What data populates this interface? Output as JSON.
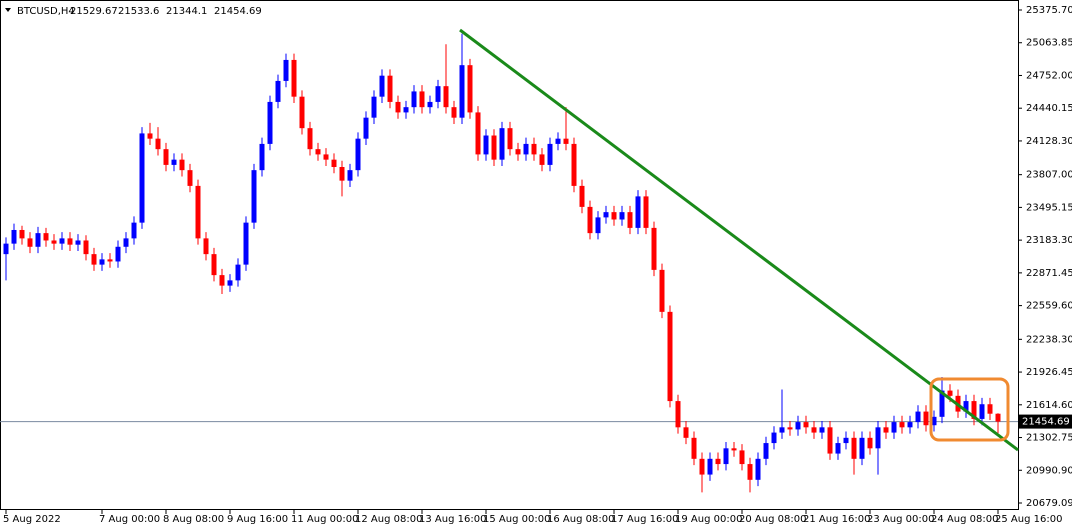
{
  "chart_data": {
    "type": "candlestick",
    "header": {
      "symbol": "BTCUSD,H4",
      "open": 21529.67,
      "high": 21533.6,
      "low": 21344.1,
      "close": 21454.69
    },
    "up_color": "#0000ff",
    "down_color": "#ff0000",
    "current_price": 21454.69,
    "ylim": [
      20679.09,
      25375.7
    ],
    "yticks": [
      {
        "value": 25375.7,
        "label": "25375.70"
      },
      25063.85,
      {
        "value": 24752.0,
        "label": "24752.00"
      },
      24440.15,
      {
        "value": 24128.3,
        "label": "24128.30"
      },
      {
        "value": 23807.0,
        "label": "23807.00"
      },
      23495.15,
      {
        "value": 23183.3,
        "label": "23183.30"
      },
      22871.45,
      {
        "value": 22559.6,
        "label": "22559.60"
      },
      {
        "value": 22238.3,
        "label": "22238.30"
      },
      21926.45,
      {
        "value": 21614.6,
        "label": "21614.60"
      },
      21302.75,
      {
        "value": 20990.9,
        "label": "20990.90"
      },
      20679.09
    ],
    "xticks": [
      {
        "value": 0,
        "label": "5 Aug 2022"
      },
      {
        "value": 12,
        "label": "7 Aug 00:00"
      },
      {
        "value": 20,
        "label": "8 Aug 08:00"
      },
      {
        "value": 28,
        "label": "9 Aug 16:00"
      },
      {
        "value": 36,
        "label": "11 Aug 00:00"
      },
      {
        "value": 44,
        "label": "12 Aug 08:00"
      },
      {
        "value": 52,
        "label": "13 Aug 16:00"
      },
      {
        "value": 60,
        "label": "15 Aug 00:00"
      },
      {
        "value": 68,
        "label": "16 Aug 08:00"
      },
      {
        "value": 76,
        "label": "17 Aug 16:00"
      },
      {
        "value": 84,
        "label": "19 Aug 00:00"
      },
      {
        "value": 92,
        "label": "20 Aug 08:00"
      },
      {
        "value": 100,
        "label": "21 Aug 16:00"
      },
      {
        "value": 108,
        "label": "23 Aug 00:00"
      },
      {
        "value": 116,
        "label": "24 Aug 08:00"
      },
      {
        "value": 124,
        "label": "25 Aug 16:00"
      }
    ],
    "open": [
      23050,
      23150,
      23280,
      23200,
      23120,
      23250,
      23180,
      23150,
      23200,
      23140,
      23180,
      23050,
      22950,
      23000,
      22980,
      23120,
      23200,
      23350,
      24200,
      24150,
      24050,
      23900,
      23950,
      23850,
      23700,
      23200,
      23050,
      22850,
      22750,
      22800,
      22950,
      23350,
      23850,
      24100,
      24500,
      24700,
      24900,
      24550,
      24250,
      24050,
      24000,
      23950,
      23880,
      23750,
      23850,
      24150,
      24350,
      24550,
      24750,
      24500,
      24400,
      24450,
      24600,
      24450,
      24500,
      24650,
      24450,
      24350,
      24850,
      24400,
      24000,
      24180,
      23950,
      24250,
      24050,
      24000,
      24100,
      24000,
      23900,
      24100,
      24150,
      24100,
      23700,
      23500,
      23250,
      23400,
      23450,
      23380,
      23450,
      23300,
      23600,
      23300,
      22900,
      22500,
      21650,
      21400,
      21300,
      21100,
      20950,
      21100,
      21050,
      21200,
      21180,
      21050,
      20900,
      21100,
      21250,
      21350,
      21400,
      21380,
      21450,
      21400,
      21350,
      21400,
      21150,
      21250,
      21300,
      21100,
      21300,
      21200,
      21400,
      21350,
      21450,
      21400,
      21450,
      21550,
      21420,
      21500,
      21750,
      21700,
      21550,
      21650,
      21480,
      21620,
      21529.67
    ],
    "high": [
      23210,
      23340,
      23320,
      23260,
      23310,
      23300,
      23240,
      23260,
      23260,
      23240,
      23230,
      23110,
      23060,
      23060,
      23180,
      23260,
      23410,
      24260,
      24300,
      24260,
      24110,
      24010,
      24010,
      23910,
      23760,
      23260,
      23110,
      22910,
      22860,
      23010,
      23410,
      23910,
      24160,
      24560,
      24760,
      24960,
      24960,
      24610,
      24310,
      24110,
      24060,
      24010,
      23940,
      23910,
      24210,
      24410,
      24610,
      24810,
      24810,
      24560,
      24510,
      24660,
      24660,
      24560,
      24710,
      25050,
      24510,
      25150,
      24910,
      24460,
      24240,
      24240,
      24310,
      24310,
      24110,
      24160,
      24160,
      24060,
      24160,
      24210,
      24450,
      24160,
      23760,
      23560,
      23460,
      23510,
      23510,
      23510,
      23510,
      23660,
      23660,
      23360,
      22960,
      22560,
      21710,
      21460,
      21360,
      21160,
      21160,
      21160,
      21260,
      21260,
      21240,
      21110,
      21160,
      21310,
      21410,
      21760,
      21460,
      21510,
      21510,
      21460,
      21460,
      21460,
      21310,
      21360,
      21360,
      21360,
      21360,
      21460,
      21460,
      21510,
      21510,
      21510,
      21610,
      21610,
      21560,
      21880,
      21810,
      21760,
      21710,
      21710,
      21680,
      21680,
      21533.6
    ],
    "low": [
      22800,
      23090,
      23140,
      23060,
      23060,
      23120,
      23090,
      23090,
      23080,
      23080,
      22990,
      22890,
      22890,
      22920,
      22920,
      23060,
      23140,
      23290,
      24090,
      23990,
      23840,
      23840,
      23790,
      23640,
      23140,
      22990,
      22790,
      22670,
      22690,
      22740,
      22890,
      23290,
      23790,
      24040,
      24440,
      24640,
      24490,
      24190,
      23990,
      23940,
      23890,
      23820,
      23600,
      23690,
      23790,
      24090,
      24290,
      24490,
      24440,
      24340,
      24340,
      24390,
      24390,
      24390,
      24440,
      24390,
      24290,
      24290,
      24340,
      23940,
      23940,
      23890,
      23890,
      23990,
      23940,
      23940,
      23940,
      23840,
      23840,
      24040,
      24040,
      23640,
      23440,
      23190,
      23190,
      23340,
      23320,
      23320,
      23240,
      23240,
      23240,
      22840,
      22440,
      21590,
      21340,
      21240,
      21040,
      20780,
      20890,
      20990,
      20990,
      21120,
      20990,
      20780,
      20840,
      21040,
      21190,
      21290,
      21320,
      21320,
      21340,
      21290,
      21290,
      21090,
      21090,
      21190,
      20950,
      21040,
      21140,
      20950,
      21290,
      21290,
      21340,
      21340,
      21390,
      21360,
      21360,
      21440,
      21640,
      21490,
      21490,
      21420,
      21420,
      21470,
      21344.1
    ],
    "close": [
      23150,
      23280,
      23200,
      23120,
      23250,
      23180,
      23150,
      23200,
      23140,
      23180,
      23050,
      22950,
      23000,
      22980,
      23120,
      23200,
      23350,
      24200,
      24150,
      24050,
      23900,
      23950,
      23850,
      23700,
      23200,
      23050,
      22850,
      22750,
      22800,
      22950,
      23350,
      23850,
      24100,
      24500,
      24700,
      24900,
      24550,
      24250,
      24050,
      24000,
      23950,
      23880,
      23750,
      23850,
      24150,
      24350,
      24550,
      24750,
      24500,
      24400,
      24450,
      24600,
      24450,
      24500,
      24650,
      24450,
      24350,
      24850,
      24400,
      24000,
      24180,
      23950,
      24250,
      24050,
      24000,
      24100,
      24000,
      23900,
      24100,
      24150,
      24100,
      23700,
      23500,
      23250,
      23400,
      23450,
      23380,
      23450,
      23300,
      23600,
      23300,
      22900,
      22500,
      21650,
      21400,
      21300,
      21100,
      20950,
      21100,
      21050,
      21200,
      21180,
      21050,
      20900,
      21100,
      21250,
      21350,
      21400,
      21380,
      21450,
      21400,
      21350,
      21400,
      21150,
      21250,
      21300,
      21100,
      21300,
      21200,
      21400,
      21350,
      21450,
      21400,
      21450,
      21550,
      21420,
      21500,
      21750,
      21700,
      21550,
      21650,
      21480,
      21620,
      21529.67,
      21454.69
    ]
  }
}
